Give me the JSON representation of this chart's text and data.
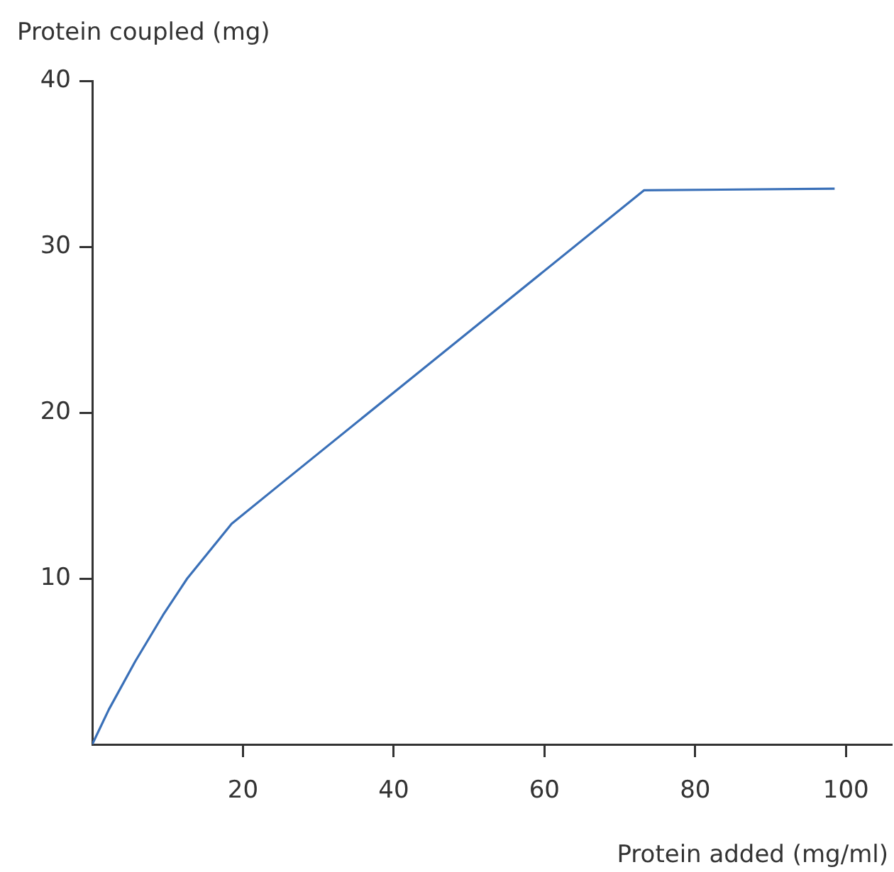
{
  "chart_data": {
    "type": "line",
    "xlabel": "Protein added (mg/ml)",
    "ylabel": "Protein coupled (mg)",
    "x": [
      0,
      2.2,
      5.7,
      9.4,
      12.6,
      18.5,
      25,
      73.2,
      98.5
    ],
    "series": [
      {
        "color": "#3a70b8",
        "values": [
          0,
          2.1,
          5.0,
          7.8,
          10,
          13.3,
          15.7,
          33.4,
          33.5
        ]
      }
    ],
    "xlim": [
      0,
      106
    ],
    "xticks": [
      20,
      40,
      60,
      80,
      100
    ],
    "ylim": [
      0,
      40
    ],
    "yticks": [
      10,
      20,
      30,
      40
    ],
    "grid": false,
    "legend": false,
    "marker": "none",
    "line_style": "solid"
  }
}
